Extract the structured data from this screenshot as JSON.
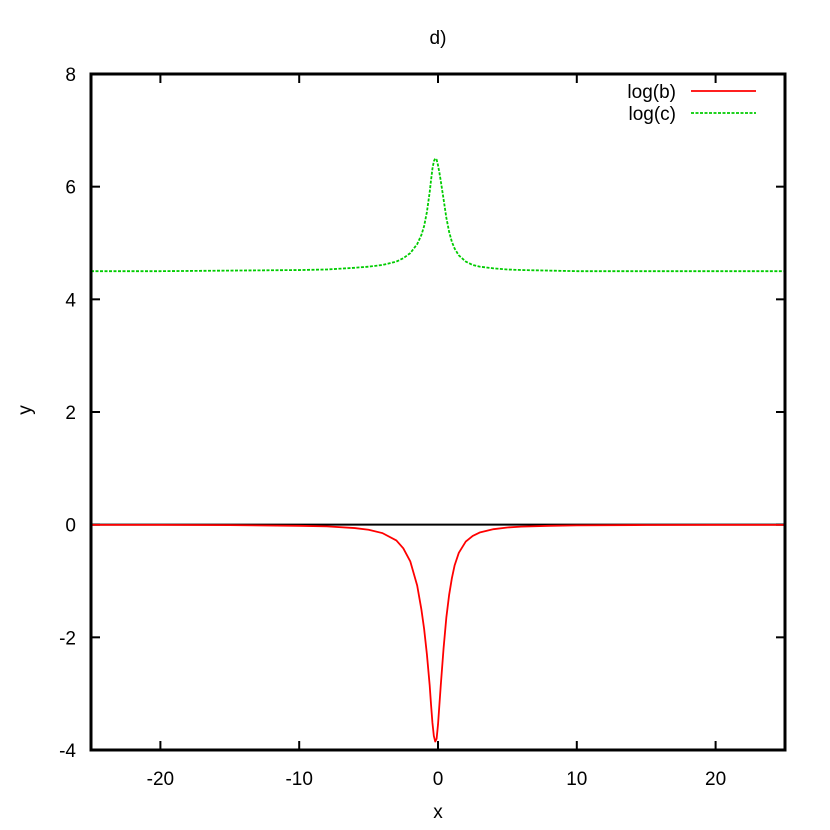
{
  "chart_data": {
    "type": "line",
    "title": "d)",
    "xlabel": "x",
    "ylabel": "y",
    "xlim": [
      -25,
      25
    ],
    "ylim": [
      -4,
      8
    ],
    "xticks": [
      -20,
      -10,
      0,
      10,
      20
    ],
    "yticks": [
      -4,
      -2,
      0,
      2,
      4,
      6,
      8
    ],
    "xtick_labels": [
      "-20",
      "-10",
      "0",
      "10",
      "20"
    ],
    "ytick_labels": [
      "-4",
      "-2",
      "0",
      "2",
      "4",
      "6",
      "8"
    ],
    "grid": false,
    "legend_position": "top-right",
    "zero_line": true,
    "series": [
      {
        "name": "log(b)",
        "color": "#ff0000",
        "dash": "solid",
        "x": [
          -25,
          -20,
          -15,
          -10,
          -8,
          -6,
          -5,
          -4,
          -3,
          -2.5,
          -2,
          -1.5,
          -1.2,
          -1,
          -0.8,
          -0.6,
          -0.5,
          -0.4,
          -0.3,
          -0.2,
          -0.1,
          0,
          0.1,
          0.2,
          0.4,
          0.6,
          0.8,
          1,
          1.2,
          1.5,
          2,
          2.5,
          3,
          4,
          5,
          6,
          8,
          10,
          15,
          20,
          25
        ],
        "y": [
          -0.003,
          -0.004,
          -0.008,
          -0.02,
          -0.03,
          -0.06,
          -0.09,
          -0.15,
          -0.28,
          -0.42,
          -0.65,
          -1.08,
          -1.5,
          -1.85,
          -2.3,
          -2.85,
          -3.2,
          -3.52,
          -3.75,
          -3.85,
          -3.8,
          -3.55,
          -3.2,
          -2.85,
          -2.2,
          -1.65,
          -1.25,
          -0.95,
          -0.72,
          -0.5,
          -0.3,
          -0.2,
          -0.14,
          -0.08,
          -0.05,
          -0.035,
          -0.02,
          -0.012,
          -0.006,
          -0.004,
          -0.003
        ]
      },
      {
        "name": "log(c)",
        "color": "#00cc00",
        "dash": "dashed",
        "x": [
          -25,
          -20,
          -15,
          -10,
          -8,
          -6,
          -5,
          -4,
          -3,
          -2.5,
          -2,
          -1.5,
          -1.2,
          -1,
          -0.8,
          -0.6,
          -0.5,
          -0.4,
          -0.3,
          -0.2,
          -0.1,
          0,
          0.1,
          0.2,
          0.4,
          0.6,
          0.8,
          1,
          1.2,
          1.5,
          2,
          2.5,
          3,
          4,
          5,
          6,
          8,
          10,
          15,
          20,
          25
        ],
        "y": [
          4.5,
          4.5,
          4.51,
          4.52,
          4.53,
          4.56,
          4.58,
          4.61,
          4.67,
          4.73,
          4.82,
          4.98,
          5.14,
          5.3,
          5.55,
          5.9,
          6.12,
          6.32,
          6.45,
          6.5,
          6.48,
          6.38,
          6.25,
          6.1,
          5.78,
          5.45,
          5.2,
          5.02,
          4.9,
          4.78,
          4.67,
          4.61,
          4.58,
          4.55,
          4.53,
          4.52,
          4.51,
          4.5,
          4.5,
          4.5,
          4.5
        ]
      }
    ]
  }
}
